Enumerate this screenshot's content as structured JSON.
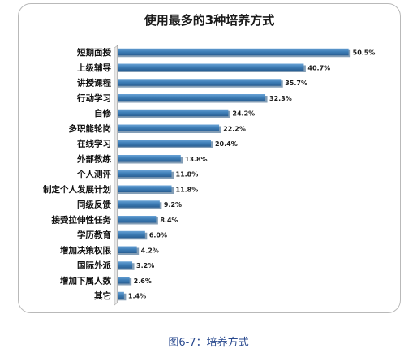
{
  "chart_data": {
    "type": "bar",
    "orientation": "horizontal",
    "title": "使用最多的3种培养方式",
    "categories": [
      "短期面授",
      "上级辅导",
      "讲授课程",
      "行动学习",
      "自修",
      "多职能轮岗",
      "在线学习",
      "外部教练",
      "个人测评",
      "制定个人发展计划",
      "同级反馈",
      "接受拉伸性任务",
      "学历教育",
      "增加决策权限",
      "国际外派",
      "增加下属人数",
      "其它"
    ],
    "values": [
      50.5,
      40.7,
      35.7,
      32.3,
      24.2,
      22.2,
      20.4,
      13.8,
      11.8,
      11.8,
      9.2,
      8.4,
      6.0,
      4.2,
      3.2,
      2.6,
      1.4
    ],
    "value_labels": [
      "50.5%",
      "40.7%",
      "35.7%",
      "32.3%",
      "24.2%",
      "22.2%",
      "20.4%",
      "13.8%",
      "11.8%",
      "11.8%",
      "9.2%",
      "8.4%",
      "6.0%",
      "4.2%",
      "3.2%",
      "2.6%",
      "1.4%"
    ],
    "xlim": [
      0,
      55
    ],
    "grid": false,
    "colors": {
      "bar": "#3f7fb8",
      "bar_dark": "#2a5f93",
      "axis": "#8c8c8c"
    }
  },
  "caption": "图6-7：培养方式"
}
